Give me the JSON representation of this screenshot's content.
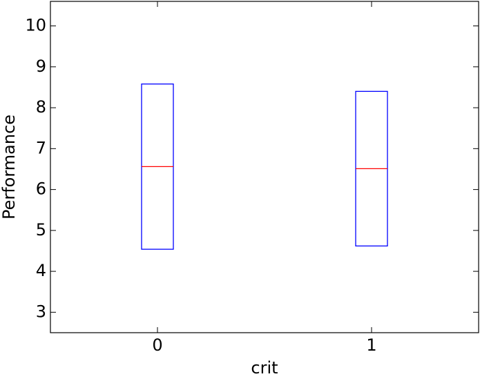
{
  "chart_data": {
    "type": "box",
    "xlabel": "crit",
    "ylabel": "Performance",
    "categories": [
      "0",
      "1"
    ],
    "q1": [
      4.54,
      4.62
    ],
    "median": [
      6.56,
      6.51
    ],
    "q3": [
      8.58,
      8.4
    ],
    "box_color": "#0000ff",
    "median_color": "#ff0000",
    "ylim": [
      2.5,
      10.6
    ],
    "yticks": [
      3,
      4,
      5,
      6,
      7,
      8,
      9,
      10
    ]
  }
}
